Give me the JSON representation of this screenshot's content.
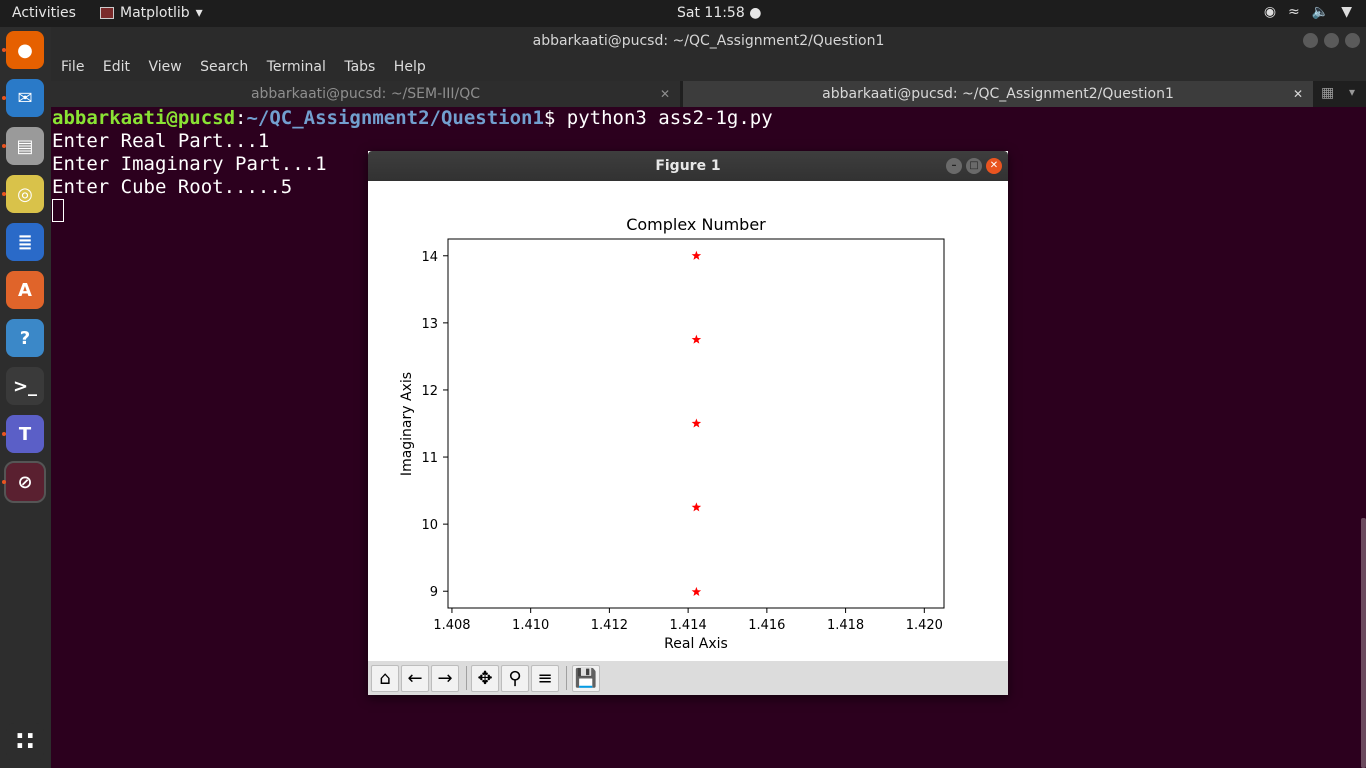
{
  "topbar": {
    "activities": "Activities",
    "app_name": "Matplotlib",
    "clock": "Sat 11:58 ●"
  },
  "dock": {
    "items": [
      {
        "name": "firefox-icon",
        "glyph": "●",
        "color": "#e66000"
      },
      {
        "name": "thunderbird-icon",
        "glyph": "✉",
        "color": "#2a7ac8"
      },
      {
        "name": "files-icon",
        "glyph": "▤",
        "color": "#9a9a9a"
      },
      {
        "name": "rhythmbox-icon",
        "glyph": "◎",
        "color": "#d9c24a"
      },
      {
        "name": "writer-icon",
        "glyph": "≣",
        "color": "#2a6ac8"
      },
      {
        "name": "software-icon",
        "glyph": "A",
        "color": "#e0642a"
      },
      {
        "name": "help-icon",
        "glyph": "?",
        "color": "#3b88c8"
      },
      {
        "name": "terminal-icon",
        "glyph": ">_",
        "color": "#3a3a3a"
      },
      {
        "name": "teams-icon",
        "glyph": "T",
        "color": "#5b5fc7"
      },
      {
        "name": "matplotlib-dock-icon",
        "glyph": "⊘",
        "color": "#5a2030"
      },
      {
        "name": "show-apps-icon",
        "glyph": "∷",
        "color": "#2d2d2d"
      }
    ]
  },
  "terminal": {
    "title": "abbarkaati@pucsd: ~/QC_Assignment2/Question1",
    "menu": [
      "File",
      "Edit",
      "View",
      "Search",
      "Terminal",
      "Tabs",
      "Help"
    ],
    "tabs": [
      {
        "label": "abbarkaati@pucsd: ~/SEM-III/QC"
      },
      {
        "label": "abbarkaati@pucsd: ~/QC_Assignment2/Question1"
      }
    ],
    "prompt_user": "abbarkaati@pucsd",
    "prompt_sep": ":",
    "prompt_path": "~/QC_Assignment2/Question1",
    "prompt_cmd": "$ python3 ass2-1g.py",
    "lines": [
      "Enter Real Part...1",
      "Enter Imaginary Part...1",
      "Enter Cube Root.....5"
    ]
  },
  "figure": {
    "window_title": "Figure 1"
  },
  "chart_data": {
    "type": "scatter",
    "title": "Complex Number",
    "xlabel": "Real Axis",
    "ylabel": "Imaginary Axis",
    "xlim": [
      1.4079,
      1.4205
    ],
    "ylim": [
      8.75,
      14.25
    ],
    "xticks": [
      1.408,
      1.41,
      1.412,
      1.414,
      1.416,
      1.418,
      1.42
    ],
    "xtick_labels": [
      "1.408",
      "1.410",
      "1.412",
      "1.414",
      "1.416",
      "1.418",
      "1.420"
    ],
    "yticks": [
      9,
      10,
      11,
      12,
      13,
      14
    ],
    "ytick_labels": [
      "9",
      "10",
      "11",
      "12",
      "13",
      "14"
    ],
    "marker": "*",
    "color": "#ff0000",
    "x": [
      1.41421,
      1.41421,
      1.41421,
      1.41421,
      1.41421
    ],
    "y": [
      8.99,
      10.25,
      11.5,
      12.75,
      14.0
    ],
    "grid": false
  }
}
